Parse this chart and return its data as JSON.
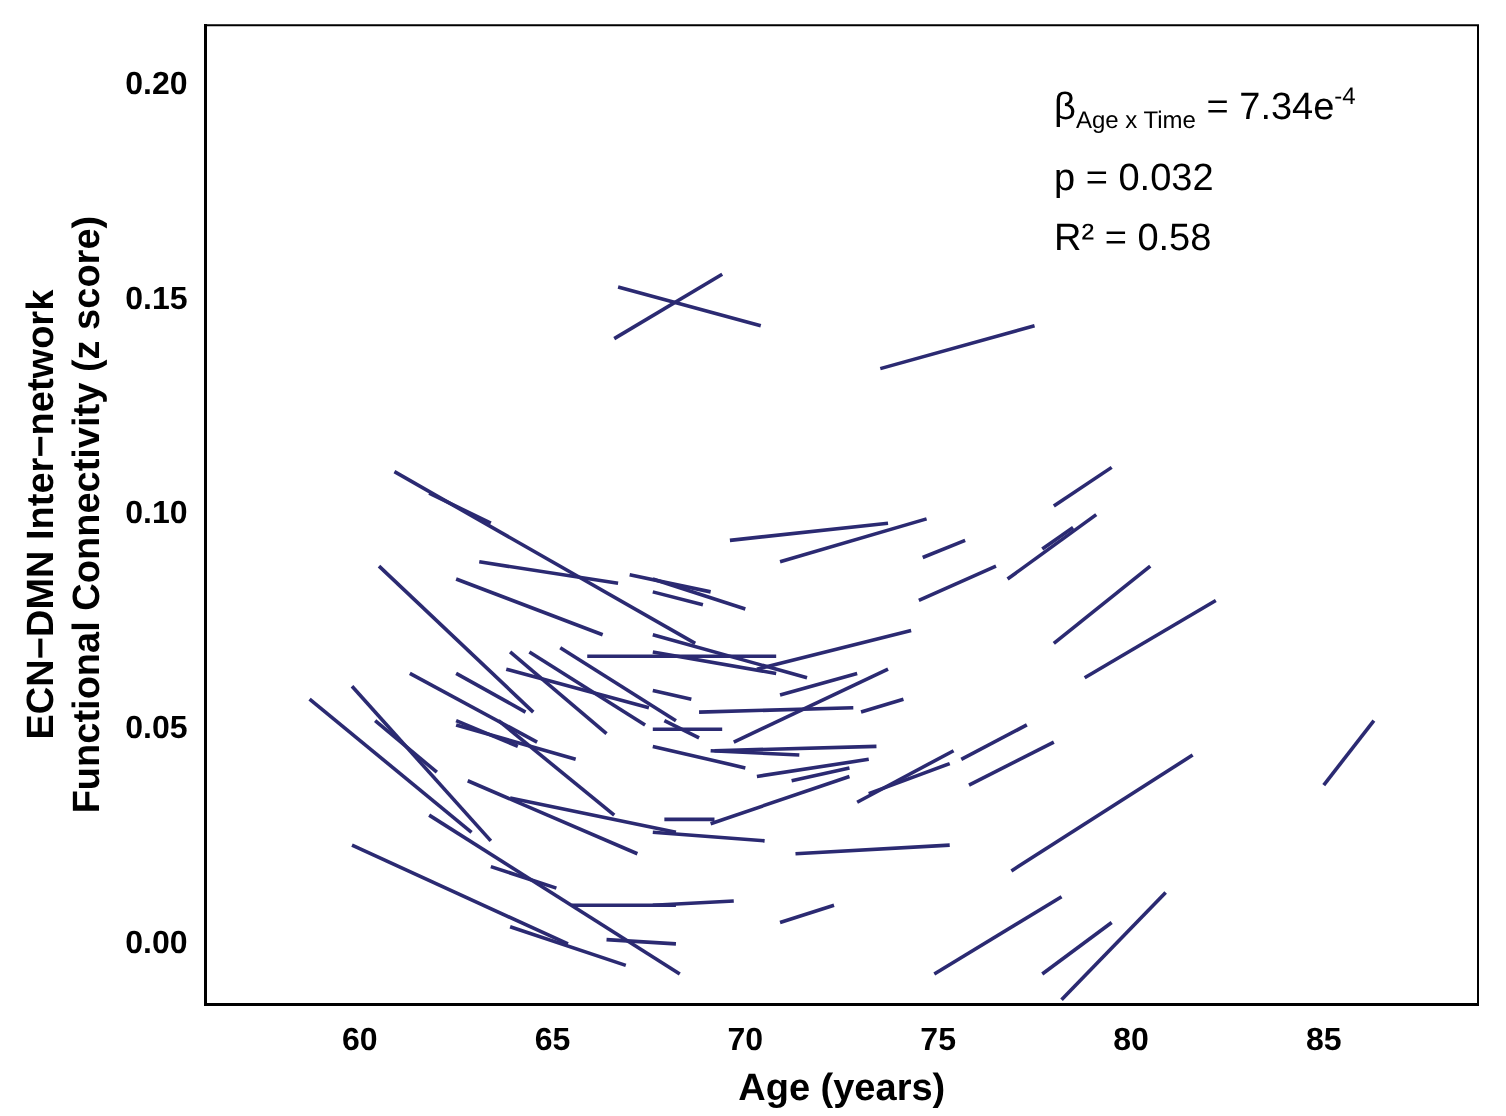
{
  "chart_data": {
    "type": "line",
    "xlabel": "Age (years)",
    "ylabel": "ECN−DMN Inter−network\nFunctional Connectivity (z score)",
    "annotations": [
      "β$_{Age x Time}$ = 7.34e$^{-4}$",
      "p = 0.032",
      "R² = 0.58"
    ],
    "xlim": [
      56,
      89
    ],
    "xticks": [
      60,
      65,
      70,
      75,
      80,
      85
    ],
    "ylim": [
      -0.014,
      0.214
    ],
    "yticks": [
      {
        "value": 0,
        "label": "0.00"
      },
      {
        "value": 0.05,
        "label": "0.05"
      },
      {
        "value": 0.1,
        "label": "0.10"
      },
      {
        "value": 0.15,
        "label": "0.15"
      },
      {
        "value": 0.2,
        "label": "0.20"
      }
    ],
    "grid": false,
    "legend": false,
    "marker": "none",
    "line_style": "solid",
    "series": [
      {
        "color": "#2b2a72",
        "x": [
          66.6,
          69.4
        ],
        "values": [
          0.141,
          0.156
        ]
      },
      {
        "color": "#2b2a72",
        "x": [
          66.7,
          70.4
        ],
        "values": [
          0.153,
          0.144
        ]
      },
      {
        "color": "#2b2a72",
        "x": [
          73.5,
          77.5
        ],
        "values": [
          0.134,
          0.144
        ]
      },
      {
        "color": "#2b2a72",
        "x": [
          60.9,
          68.7
        ],
        "values": [
          0.11,
          0.07
        ]
      },
      {
        "color": "#2b2a72",
        "x": [
          61.8,
          63.4
        ],
        "values": [
          0.105,
          0.098
        ]
      },
      {
        "color": "#2b2a72",
        "x": [
          63.1,
          66.7
        ],
        "values": [
          0.089,
          0.084
        ]
      },
      {
        "color": "#2b2a72",
        "x": [
          62.5,
          66.3
        ],
        "values": [
          0.085,
          0.072
        ]
      },
      {
        "color": "#2b2a72",
        "x": [
          67.0,
          69.1
        ],
        "values": [
          0.086,
          0.082
        ]
      },
      {
        "color": "#2b2a72",
        "x": [
          69.6,
          73.7
        ],
        "values": [
          0.094,
          0.098
        ]
      },
      {
        "color": "#2b2a72",
        "x": [
          70.9,
          74.7
        ],
        "values": [
          0.089,
          0.099
        ]
      },
      {
        "color": "#2b2a72",
        "x": [
          74.6,
          75.7
        ],
        "values": [
          0.09,
          0.094
        ]
      },
      {
        "color": "#2b2a72",
        "x": [
          74.5,
          76.5
        ],
        "values": [
          0.08,
          0.088
        ]
      },
      {
        "color": "#2b2a72",
        "x": [
          60.5,
          64.5
        ],
        "values": [
          0.088,
          0.054
        ]
      },
      {
        "color": "#2b2a72",
        "x": [
          65.9,
          70.8
        ],
        "values": [
          0.067,
          0.067
        ]
      },
      {
        "color": "#2b2a72",
        "x": [
          63.9,
          66.4
        ],
        "values": [
          0.068,
          0.049
        ]
      },
      {
        "color": "#2b2a72",
        "x": [
          65.2,
          68.2
        ],
        "values": [
          0.069,
          0.052
        ]
      },
      {
        "color": "#2b2a72",
        "x": [
          64.4,
          67.4
        ],
        "values": [
          0.068,
          0.051
        ]
      },
      {
        "color": "#2b2a72",
        "x": [
          63.8,
          67.5
        ],
        "values": [
          0.064,
          0.055
        ]
      },
      {
        "color": "#2b2a72",
        "x": [
          61.3,
          64.6
        ],
        "values": [
          0.063,
          0.047
        ]
      },
      {
        "color": "#2b2a72",
        "x": [
          62.5,
          64.3
        ],
        "values": [
          0.063,
          0.054
        ]
      },
      {
        "color": "#2b2a72",
        "x": [
          58.7,
          62.9
        ],
        "values": [
          0.057,
          0.026
        ]
      },
      {
        "color": "#2b2a72",
        "x": [
          59.8,
          63.4
        ],
        "values": [
          0.06,
          0.024
        ]
      },
      {
        "color": "#2b2a72",
        "x": [
          61.8,
          68.3
        ],
        "values": [
          0.03,
          -0.007
        ]
      },
      {
        "color": "#2b2a72",
        "x": [
          59.8,
          65.4
        ],
        "values": [
          0.023,
          0.0
        ]
      },
      {
        "color": "#2b2a72",
        "x": [
          63.9,
          66.9
        ],
        "values": [
          0.004,
          -0.005
        ]
      },
      {
        "color": "#2b2a72",
        "x": [
          63.4,
          65.1
        ],
        "values": [
          0.018,
          0.013
        ]
      },
      {
        "color": "#2b2a72",
        "x": [
          65.5,
          68.2
        ],
        "values": [
          0.009,
          0.009
        ]
      },
      {
        "color": "#2b2a72",
        "x": [
          66.4,
          68.2
        ],
        "values": [
          0.001,
          0.0
        ]
      },
      {
        "color": "#2b2a72",
        "x": [
          62.5,
          65.6
        ],
        "values": [
          0.051,
          0.043
        ]
      },
      {
        "color": "#2b2a72",
        "x": [
          62.5,
          64.1
        ],
        "values": [
          0.052,
          0.046
        ]
      },
      {
        "color": "#2b2a72",
        "x": [
          62.8,
          67.2
        ],
        "values": [
          0.038,
          0.021
        ]
      },
      {
        "color": "#2b2a72",
        "x": [
          63.6,
          66.6
        ],
        "values": [
          0.052,
          0.03
        ]
      },
      {
        "color": "#2b2a72",
        "x": [
          60.4,
          62.0
        ],
        "values": [
          0.052,
          0.04
        ]
      },
      {
        "color": "#2b2a72",
        "x": [
          63.9,
          68.2
        ],
        "values": [
          0.034,
          0.026
        ]
      },
      {
        "color": "#2b2a72",
        "x": [
          69.2,
          73.4
        ],
        "values": [
          0.045,
          0.046
        ]
      },
      {
        "color": "#2b2a72",
        "x": [
          69.1,
          71.4
        ],
        "values": [
          0.045,
          0.044
        ]
      },
      {
        "color": "#2b2a72",
        "x": [
          67.6,
          70.0
        ],
        "values": [
          0.046,
          0.041
        ]
      },
      {
        "color": "#2b2a72",
        "x": [
          70.3,
          73.2
        ],
        "values": [
          0.039,
          0.043
        ]
      },
      {
        "color": "#2b2a72",
        "x": [
          71.2,
          72.7
        ],
        "values": [
          0.038,
          0.041
        ]
      },
      {
        "color": "#2b2a72",
        "x": [
          69.1,
          72.7
        ],
        "values": [
          0.028,
          0.039
        ]
      },
      {
        "color": "#2b2a72",
        "x": [
          67.9,
          69.2
        ],
        "values": [
          0.029,
          0.029
        ]
      },
      {
        "color": "#2b2a72",
        "x": [
          67.6,
          70.5
        ],
        "values": [
          0.026,
          0.024
        ]
      },
      {
        "color": "#2b2a72",
        "x": [
          71.3,
          75.3
        ],
        "values": [
          0.021,
          0.023
        ]
      },
      {
        "color": "#2b2a72",
        "x": [
          67.6,
          69.7
        ],
        "values": [
          0.009,
          0.01
        ]
      },
      {
        "color": "#2b2a72",
        "x": [
          70.9,
          72.3
        ],
        "values": [
          0.005,
          0.009
        ]
      },
      {
        "color": "#2b2a72",
        "x": [
          72.9,
          75.4
        ],
        "values": [
          0.033,
          0.045
        ]
      },
      {
        "color": "#2b2a72",
        "x": [
          73.2,
          75.3
        ],
        "values": [
          0.035,
          0.042
        ]
      },
      {
        "color": "#2b2a72",
        "x": [
          75.6,
          77.3
        ],
        "values": [
          0.043,
          0.051
        ]
      },
      {
        "color": "#2b2a72",
        "x": [
          75.8,
          78.0
        ],
        "values": [
          0.037,
          0.047
        ]
      },
      {
        "color": "#2b2a72",
        "x": [
          76.9,
          81.6
        ],
        "values": [
          0.017,
          0.044
        ]
      },
      {
        "color": "#2b2a72",
        "x": [
          74.9,
          78.2
        ],
        "values": [
          -0.007,
          0.011
        ]
      },
      {
        "color": "#2b2a72",
        "x": [
          77.7,
          79.5
        ],
        "values": [
          -0.007,
          0.005
        ]
      },
      {
        "color": "#2b2a72",
        "x": [
          78.2,
          80.9
        ],
        "values": [
          -0.013,
          0.012
        ]
      },
      {
        "color": "#2b2a72",
        "x": [
          85.0,
          86.3
        ],
        "values": [
          0.037,
          0.052
        ]
      },
      {
        "color": "#2b2a72",
        "x": [
          70.3,
          74.3
        ],
        "values": [
          0.064,
          0.073
        ]
      },
      {
        "color": "#2b2a72",
        "x": [
          67.6,
          70.0
        ],
        "values": [
          0.085,
          0.078
        ]
      },
      {
        "color": "#2b2a72",
        "x": [
          67.6,
          68.9
        ],
        "values": [
          0.082,
          0.079
        ]
      },
      {
        "color": "#2b2a72",
        "x": [
          67.6,
          71.6
        ],
        "values": [
          0.072,
          0.062
        ]
      },
      {
        "color": "#2b2a72",
        "x": [
          67.6,
          70.8
        ],
        "values": [
          0.068,
          0.063
        ]
      },
      {
        "color": "#2b2a72",
        "x": [
          70.9,
          72.9
        ],
        "values": [
          0.058,
          0.063
        ]
      },
      {
        "color": "#2b2a72",
        "x": [
          73.0,
          74.1
        ],
        "values": [
          0.054,
          0.057
        ]
      },
      {
        "color": "#2b2a72",
        "x": [
          68.8,
          72.8
        ],
        "values": [
          0.054,
          0.055
        ]
      },
      {
        "color": "#2b2a72",
        "x": [
          69.7,
          73.7
        ],
        "values": [
          0.047,
          0.064
        ]
      },
      {
        "color": "#2b2a72",
        "x": [
          67.6,
          68.6
        ],
        "values": [
          0.059,
          0.057
        ]
      },
      {
        "color": "#2b2a72",
        "x": [
          67.9,
          68.8
        ],
        "values": [
          0.052,
          0.048
        ]
      },
      {
        "color": "#2b2a72",
        "x": [
          67.6,
          69.4
        ],
        "values": [
          0.05,
          0.05
        ]
      },
      {
        "color": "#2b2a72",
        "x": [
          78.0,
          79.5
        ],
        "values": [
          0.102,
          0.111
        ]
      },
      {
        "color": "#2b2a72",
        "x": [
          76.8,
          79.1
        ],
        "values": [
          0.085,
          0.1
        ]
      },
      {
        "color": "#2b2a72",
        "x": [
          77.7,
          78.5
        ],
        "values": [
          0.092,
          0.097
        ]
      },
      {
        "color": "#2b2a72",
        "x": [
          78.0,
          80.5
        ],
        "values": [
          0.07,
          0.088
        ]
      },
      {
        "color": "#2b2a72",
        "x": [
          78.8,
          82.2
        ],
        "values": [
          0.062,
          0.08
        ]
      }
    ]
  }
}
